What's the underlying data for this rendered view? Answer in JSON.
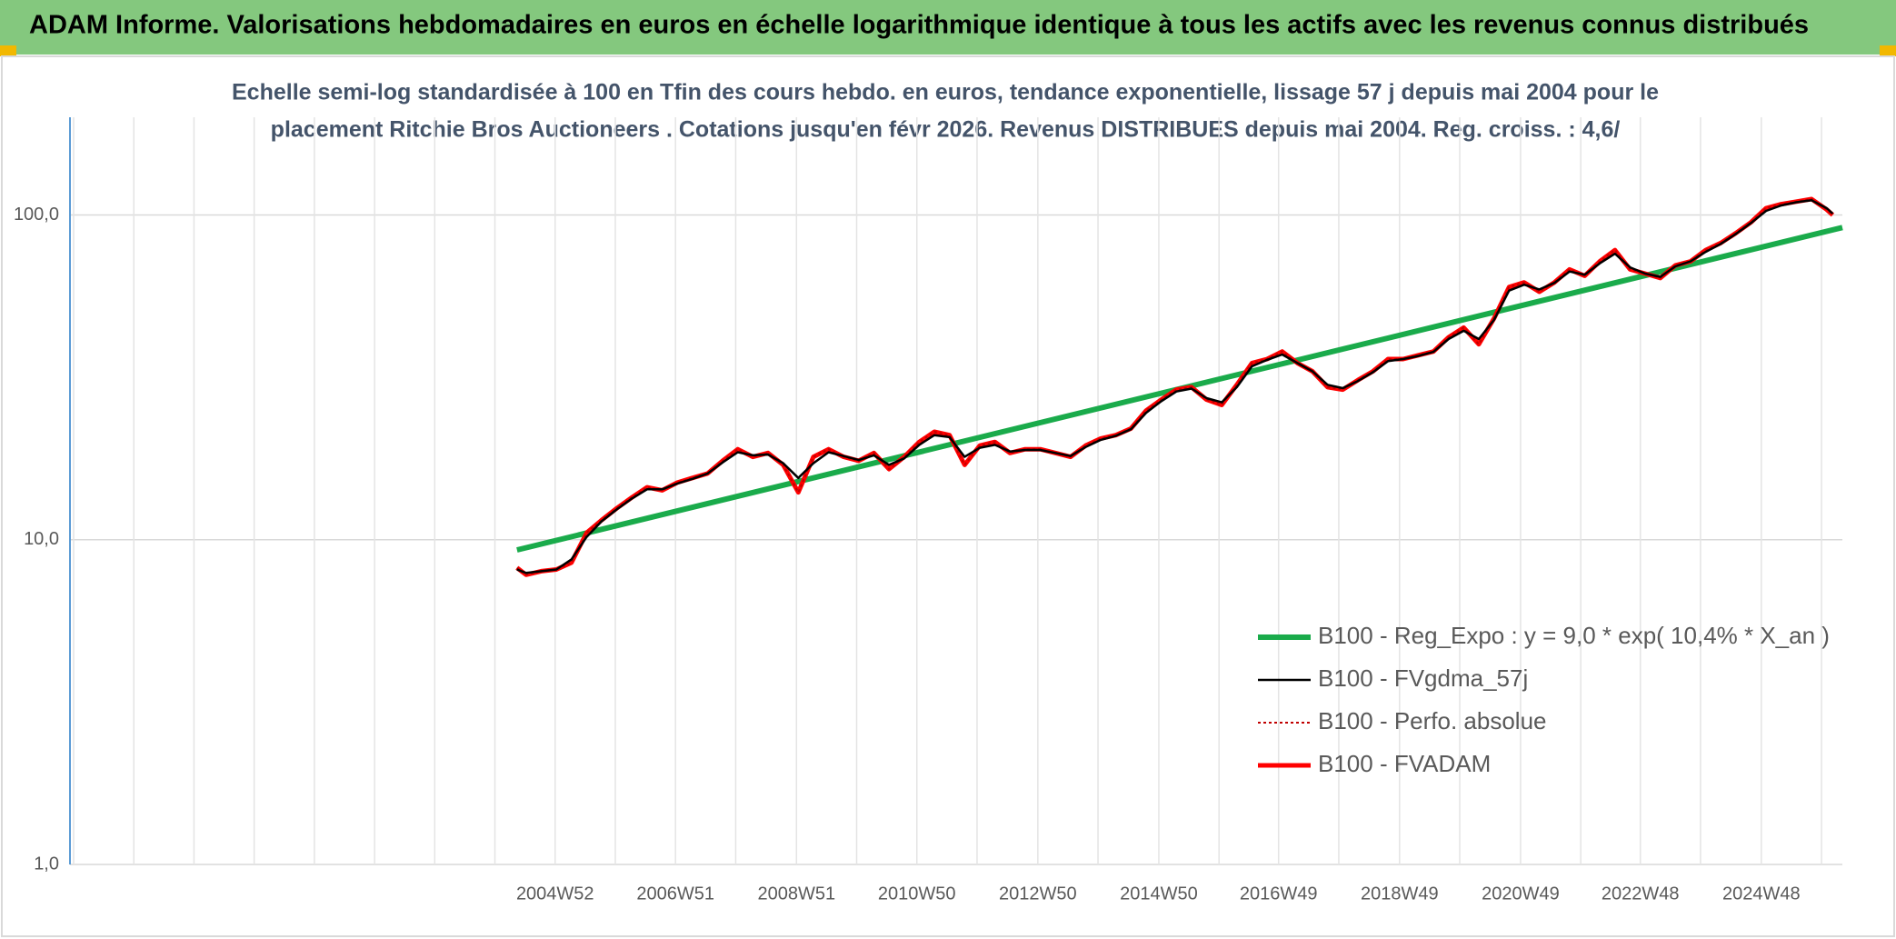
{
  "chart_data": {
    "type": "line",
    "title": "ADAM Informe. Valorisations hebdomadaires en euros en échelle logarithmique identique à tous les actifs avec les revenus connus distribués",
    "subtitle": [
      "Echelle semi-log standardisée à 100 en Tfin des cours hebdo. en euros, tendance exponentielle, lissage 57 j depuis mai 2004 pour le",
      "placement Ritchie Bros Auctioneers . Cotations jusqu'en févr 2026. Revenus DISTRIBUES depuis mai 2004. Reg. croiss. : 4,6/"
    ],
    "log_scale": true,
    "grid": true,
    "legend": "right",
    "xlim": [
      1996.96,
      2026.26
    ],
    "xticks": [
      {
        "value": 2004.98,
        "label": "2004W52"
      },
      {
        "value": 2006.97,
        "label": "2006W51"
      },
      {
        "value": 2008.97,
        "label": "2008W51"
      },
      {
        "value": 2010.96,
        "label": "2010W50"
      },
      {
        "value": 2012.96,
        "label": "2012W50"
      },
      {
        "value": 2014.96,
        "label": "2014W50"
      },
      {
        "value": 2016.94,
        "label": "2016W49"
      },
      {
        "value": 2018.94,
        "label": "2018W49"
      },
      {
        "value": 2020.94,
        "label": "2020W49"
      },
      {
        "value": 2022.92,
        "label": "2022W48"
      },
      {
        "value": 2024.92,
        "label": "2024W48"
      }
    ],
    "ylim": [
      1,
      200
    ],
    "yticks": [
      {
        "value": 1,
        "label": "1,0"
      },
      {
        "value": 10,
        "label": "10,0"
      },
      {
        "value": 100,
        "label": "100,0"
      }
    ],
    "x": [
      2004.35,
      2004.5,
      2004.75,
      2005.0,
      2005.25,
      2005.5,
      2005.75,
      2006.0,
      2006.25,
      2006.5,
      2006.75,
      2007.0,
      2007.25,
      2007.5,
      2007.75,
      2008.0,
      2008.25,
      2008.5,
      2008.75,
      2009.0,
      2009.25,
      2009.5,
      2009.75,
      2010.0,
      2010.25,
      2010.5,
      2010.75,
      2011.0,
      2011.25,
      2011.5,
      2011.75,
      2012.0,
      2012.25,
      2012.5,
      2012.75,
      2013.0,
      2013.25,
      2013.5,
      2013.75,
      2014.0,
      2014.25,
      2014.5,
      2014.75,
      2015.0,
      2015.25,
      2015.5,
      2015.75,
      2016.0,
      2016.25,
      2016.5,
      2016.75,
      2017.0,
      2017.25,
      2017.5,
      2017.75,
      2018.0,
      2018.25,
      2018.5,
      2018.75,
      2019.0,
      2019.25,
      2019.5,
      2019.75,
      2020.0,
      2020.25,
      2020.5,
      2020.75,
      2021.0,
      2021.25,
      2021.5,
      2021.75,
      2022.0,
      2022.25,
      2022.5,
      2022.75,
      2023.0,
      2023.25,
      2023.5,
      2023.75,
      2024.0,
      2024.25,
      2024.5,
      2024.75,
      2025.0,
      2025.25,
      2025.5,
      2025.75,
      2026.0,
      2026.1
    ],
    "series": [
      {
        "name": "B100 - Reg_Expo : y = 9,0 * exp( 10,4% *  X_an )",
        "color": "#1aab4b",
        "width": 6,
        "x": [
          2004.35,
          2026.26
        ],
        "values": [
          9.3,
          91.5
        ]
      },
      {
        "name": "B100 - FVgdma_57j",
        "color": "#000000",
        "width": 2.5,
        "values": [
          8.1,
          7.9,
          8.0,
          8.1,
          8.7,
          10.2,
          11.4,
          12.4,
          13.4,
          14.3,
          14.3,
          14.9,
          15.4,
          16.0,
          17.3,
          18.6,
          18.2,
          18.3,
          17.2,
          15.5,
          17.2,
          18.6,
          18.1,
          17.6,
          18.2,
          17.0,
          17.8,
          19.6,
          21.0,
          20.7,
          18.0,
          19.2,
          19.6,
          18.7,
          18.9,
          18.9,
          18.5,
          18.1,
          19.3,
          20.3,
          20.9,
          21.9,
          24.6,
          26.7,
          28.6,
          29.2,
          27.3,
          26.5,
          29.5,
          34.2,
          35.8,
          37.2,
          35.0,
          33.0,
          30.0,
          29.3,
          30.8,
          32.8,
          35.5,
          36.0,
          36.8,
          37.9,
          41.5,
          44.0,
          41.5,
          47.5,
          58.5,
          61.0,
          59.0,
          61.8,
          67.0,
          65.5,
          71.0,
          76.0,
          69.0,
          66.0,
          64.5,
          69.5,
          72.0,
          77.0,
          81.5,
          87.5,
          94.5,
          103.0,
          107.0,
          109.5,
          111.0,
          105.0,
          101.0
        ]
      },
      {
        "name": "B100 - Perfo. absolue",
        "color": "#c00000",
        "width": 2,
        "dash": "3 3",
        "values": [
          8.2,
          7.8,
          8.0,
          8.1,
          8.5,
          10.5,
          11.5,
          12.5,
          13.5,
          14.5,
          14.2,
          15.0,
          15.5,
          16.0,
          17.5,
          19.0,
          18.0,
          18.5,
          17.0,
          14.0,
          18.0,
          19.0,
          18.0,
          17.5,
          18.5,
          16.5,
          18.0,
          20.0,
          21.5,
          21.0,
          17.0,
          19.5,
          20.0,
          18.5,
          19.0,
          19.0,
          18.5,
          18.0,
          19.5,
          20.5,
          21.0,
          22.0,
          25.0,
          27.0,
          29.0,
          29.5,
          27.0,
          26.0,
          30.0,
          35.0,
          36.0,
          38.0,
          35.0,
          33.0,
          29.5,
          29.0,
          31.0,
          33.0,
          36.0,
          36.0,
          37.0,
          38.0,
          42.0,
          45.0,
          40.0,
          48.0,
          60.0,
          62.0,
          58.0,
          62.0,
          68.0,
          65.0,
          72.0,
          78.0,
          68.0,
          66.0,
          64.0,
          70.0,
          72.0,
          78.0,
          82.0,
          88.0,
          95.0,
          105.0,
          108.0,
          110.0,
          112.0,
          104.0,
          100.0
        ]
      },
      {
        "name": "B100 - FVADAM",
        "color": "#ff0000",
        "width": 5,
        "values": [
          8.2,
          7.8,
          8.0,
          8.1,
          8.5,
          10.5,
          11.5,
          12.5,
          13.5,
          14.5,
          14.2,
          15.0,
          15.5,
          16.0,
          17.5,
          19.0,
          18.0,
          18.5,
          17.0,
          14.0,
          18.0,
          19.0,
          18.0,
          17.5,
          18.5,
          16.5,
          18.0,
          20.0,
          21.5,
          21.0,
          17.0,
          19.5,
          20.0,
          18.5,
          19.0,
          19.0,
          18.5,
          18.0,
          19.5,
          20.5,
          21.0,
          22.0,
          25.0,
          27.0,
          29.0,
          29.5,
          27.0,
          26.0,
          30.0,
          35.0,
          36.0,
          38.0,
          35.0,
          33.0,
          29.5,
          29.0,
          31.0,
          33.0,
          36.0,
          36.0,
          37.0,
          38.0,
          42.0,
          45.0,
          40.0,
          48.0,
          60.0,
          62.0,
          58.0,
          62.0,
          68.0,
          65.0,
          72.0,
          78.0,
          68.0,
          66.0,
          64.0,
          70.0,
          72.0,
          78.0,
          82.0,
          88.0,
          95.0,
          105.0,
          108.0,
          110.0,
          112.0,
          104.0,
          100.0
        ]
      }
    ]
  }
}
